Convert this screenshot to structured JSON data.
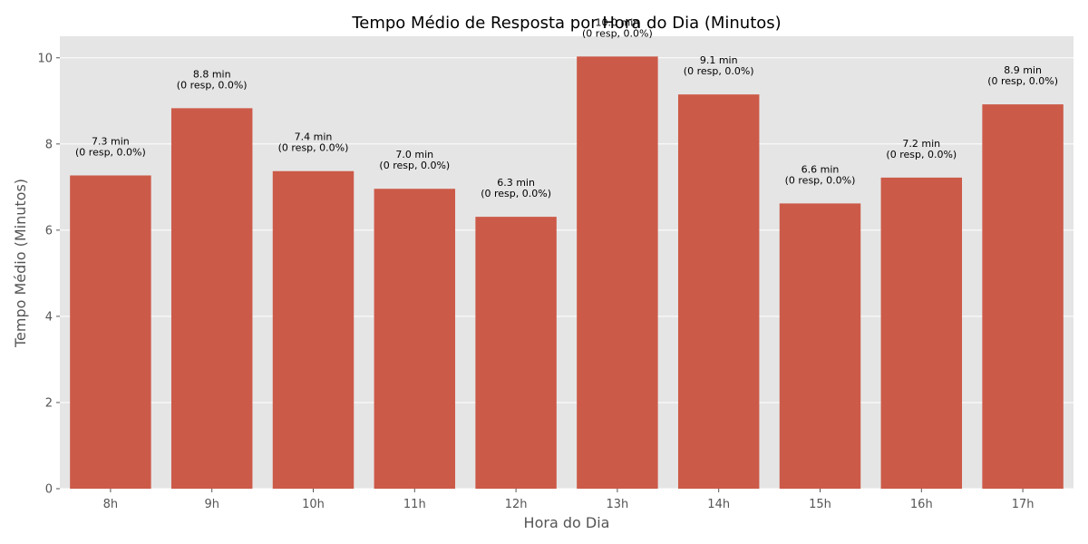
{
  "chart_data": {
    "type": "bar",
    "title": "Tempo Médio de Resposta por Hora do Dia (Minutos)",
    "xlabel": "Hora do Dia",
    "ylabel": "Tempo Médio (Minutos)",
    "categories": [
      "8h",
      "9h",
      "10h",
      "11h",
      "12h",
      "13h",
      "14h",
      "15h",
      "16h",
      "17h"
    ],
    "values": [
      7.27,
      8.83,
      7.37,
      6.96,
      6.31,
      10.03,
      9.15,
      6.62,
      7.22,
      8.92
    ],
    "bar_labels": [
      [
        "7.3 min",
        "(0 resp, 0.0%)"
      ],
      [
        "8.8 min",
        "(0 resp, 0.0%)"
      ],
      [
        "7.4 min",
        "(0 resp, 0.0%)"
      ],
      [
        "7.0 min",
        "(0 resp, 0.0%)"
      ],
      [
        "6.3 min",
        "(0 resp, 0.0%)"
      ],
      [
        "10.0 min",
        "(0 resp, 0.0%)"
      ],
      [
        "9.1 min",
        "(0 resp, 0.0%)"
      ],
      [
        "6.6 min",
        "(0 resp, 0.0%)"
      ],
      [
        "7.2 min",
        "(0 resp, 0.0%)"
      ],
      [
        "8.9 min",
        "(0 resp, 0.0%)"
      ]
    ],
    "ylim": [
      0,
      10.5
    ],
    "yticks": [
      0,
      2,
      4,
      6,
      8,
      10
    ],
    "grid": true,
    "colors": {
      "bar": "#cc5a48",
      "plot_background": "#e5e5e5",
      "grid": "#ffffff"
    }
  }
}
